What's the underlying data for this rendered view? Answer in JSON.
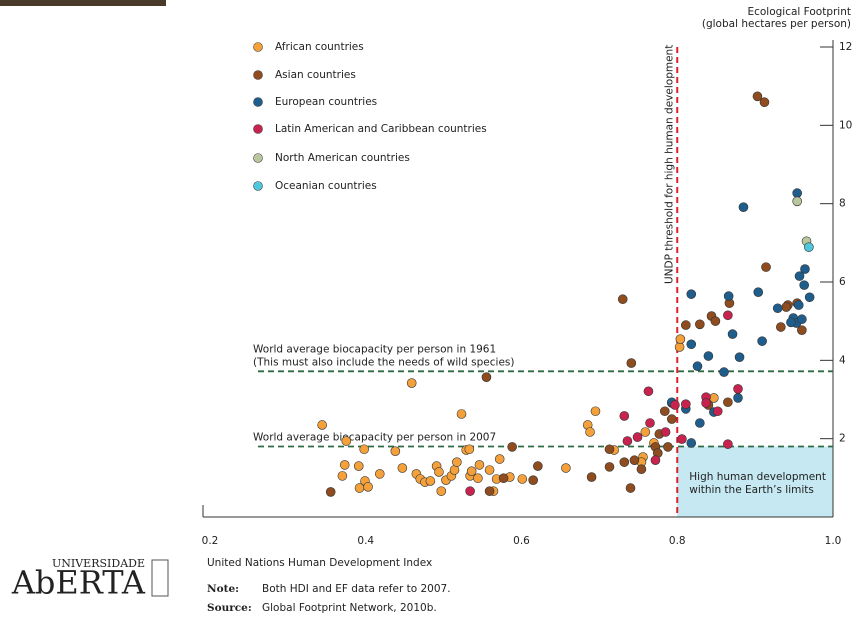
{
  "chart_data": {
    "type": "scatter",
    "y_title": [
      "Ecological Footprint",
      "(global hectares per person)"
    ],
    "x_title": "United Nations Human Development Index",
    "xlim": [
      0.2,
      1.0
    ],
    "xticks": [
      0.2,
      0.4,
      0.6,
      0.8,
      {
        "value": 1.0,
        "label": "1.0"
      }
    ],
    "ylim": [
      0,
      12
    ],
    "yticks": [
      2,
      4,
      6,
      8,
      10,
      12
    ],
    "threshold": {
      "value": 0.8,
      "label": "UNDP threshold for high human development",
      "color": "#e0202a"
    },
    "reference_lines": [
      {
        "value": 3.72,
        "label": [
          "World average biocapacity per person in 1961",
          "(This must also include the needs of wild species)"
        ],
        "color": "#2e6b45"
      },
      {
        "value": 1.8,
        "label": [
          "World average biocapacity per person in 2007"
        ],
        "color": "#2e6b45"
      }
    ],
    "highlight": {
      "label": [
        "High human development",
        "within the Earth’s limits"
      ],
      "color": "#c5e8f2"
    },
    "series": [
      {
        "name": "African countries",
        "color": "#f4a13b",
        "x": [
          0.344,
          0.375,
          0.398,
          0.373,
          0.37,
          0.391,
          0.399,
          0.392,
          0.403,
          0.418,
          0.438,
          0.447,
          0.459,
          0.465,
          0.47,
          0.476,
          0.483,
          0.491,
          0.494,
          0.497,
          0.503,
          0.51,
          0.514,
          0.517,
          0.523,
          0.529,
          0.533,
          0.534,
          0.536,
          0.544,
          0.546,
          0.559,
          0.564,
          0.568,
          0.572,
          0.585,
          0.601,
          0.657,
          0.685,
          0.688,
          0.695,
          0.719,
          0.756,
          0.754,
          0.77,
          0.803,
          0.804,
          0.847,
          0.759
        ],
        "values": [
          2.35,
          1.94,
          1.73,
          1.33,
          1.05,
          1.3,
          0.92,
          0.74,
          0.77,
          1.1,
          1.68,
          1.25,
          3.42,
          1.1,
          0.97,
          0.89,
          0.92,
          1.3,
          1.15,
          0.66,
          0.94,
          1.05,
          1.2,
          1.4,
          2.63,
          1.71,
          1.73,
          1.05,
          1.17,
          0.99,
          1.33,
          1.2,
          0.66,
          0.97,
          1.48,
          1.02,
          0.97,
          1.25,
          2.35,
          2.17,
          2.7,
          1.71,
          1.53,
          1.4,
          1.89,
          4.34,
          4.54,
          3.04,
          2.17
        ]
      },
      {
        "name": "Asian countries",
        "color": "#8e4c1f",
        "x": [
          0.355,
          0.555,
          0.577,
          0.559,
          0.588,
          0.615,
          0.621,
          0.69,
          0.713,
          0.713,
          0.73,
          0.741,
          0.74,
          0.745,
          0.732,
          0.772,
          0.777,
          0.775,
          0.784,
          0.788,
          0.793,
          0.811,
          0.829,
          0.844,
          0.849,
          0.84,
          0.865,
          0.867,
          0.914,
          0.903,
          0.912,
          0.933,
          0.942,
          0.96,
          0.94,
          0.954,
          0.793,
          0.754
        ],
        "values": [
          0.64,
          3.57,
          0.99,
          0.66,
          1.79,
          0.94,
          1.3,
          1.02,
          1.73,
          1.28,
          5.56,
          3.93,
          0.74,
          1.45,
          1.4,
          1.79,
          2.12,
          1.63,
          2.7,
          1.79,
          2.91,
          4.9,
          4.92,
          5.13,
          5.0,
          2.86,
          2.93,
          5.46,
          6.38,
          10.74,
          10.59,
          4.85,
          5.41,
          4.77,
          5.36,
          5.46,
          2.5,
          1.22
        ]
      },
      {
        "name": "European countries",
        "color": "#1f5e8c",
        "x": [
          0.793,
          0.811,
          0.818,
          0.818,
          0.818,
          0.829,
          0.826,
          0.84,
          0.847,
          0.86,
          0.866,
          0.871,
          0.878,
          0.88,
          0.885,
          0.904,
          0.909,
          0.929,
          0.949,
          0.953,
          0.954,
          0.956,
          0.957,
          0.964,
          0.963,
          0.97,
          0.96,
          0.946
        ],
        "values": [
          2.93,
          2.76,
          1.89,
          5.69,
          4.41,
          2.4,
          3.85,
          4.11,
          2.68,
          3.7,
          5.64,
          4.67,
          3.04,
          4.08,
          7.91,
          5.74,
          4.49,
          5.33,
          5.08,
          4.95,
          8.27,
          5.41,
          6.15,
          6.33,
          5.92,
          5.61,
          5.05,
          4.97
        ]
      },
      {
        "name": "Latin American and Caribbean countries",
        "color": "#c8234f",
        "x": [
          0.534,
          0.732,
          0.736,
          0.749,
          0.763,
          0.765,
          0.772,
          0.785,
          0.797,
          0.806,
          0.811,
          0.837,
          0.837,
          0.852,
          0.865,
          0.865,
          0.878
        ],
        "values": [
          0.66,
          2.58,
          1.94,
          2.04,
          3.21,
          2.4,
          1.45,
          2.17,
          2.86,
          1.99,
          2.88,
          3.06,
          2.91,
          2.7,
          5.15,
          1.86,
          3.27
        ]
      },
      {
        "name": "North American countries",
        "color": "#b9c79e",
        "x": [
          0.954,
          0.966
        ],
        "values": [
          8.06,
          7.04
        ]
      },
      {
        "name": "Oceanian countries",
        "color": "#4ec6dc",
        "x": [
          0.969
        ],
        "values": [
          6.89
        ]
      }
    ],
    "note": {
      "label": "Note:",
      "text": "Both HDI and EF data refer to 2007."
    },
    "source": {
      "label": "Source:",
      "text": "Global Footprint Network, 2010b."
    },
    "logo": [
      "UNIVERSIDADE",
      "AbERTA"
    ]
  }
}
